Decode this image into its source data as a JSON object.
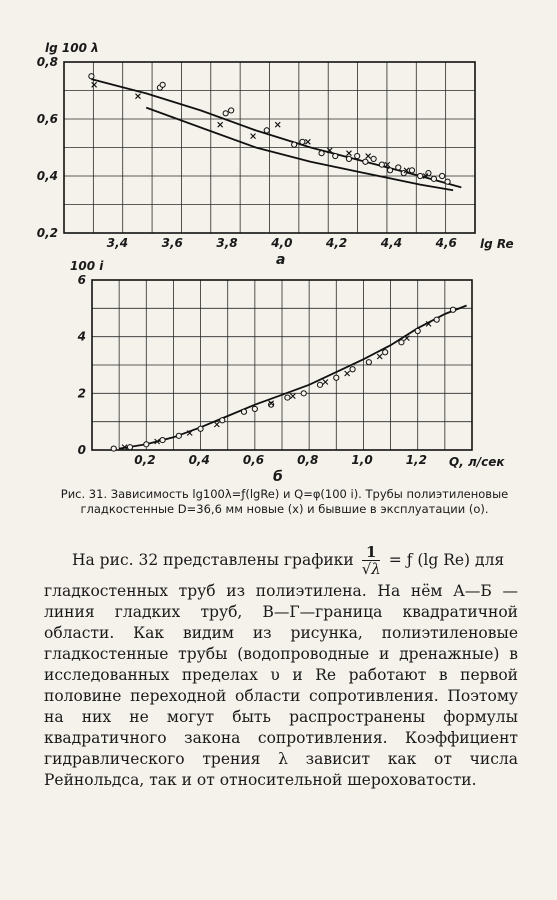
{
  "chart_data": [
    {
      "type": "scatter",
      "panel_label": "а",
      "ylabel": "lg 100 λ",
      "xlabel": "lg Re",
      "xlim": [
        3.2,
        4.7
      ],
      "ylim": [
        0.2,
        0.8
      ],
      "xticks": [
        "3,4",
        "3,6",
        "3,8",
        "4,0",
        "4,2",
        "4,4",
        "4,6"
      ],
      "yticks": [
        "0,2",
        "0,4",
        "0,6",
        "0,8"
      ],
      "grid": true,
      "series": [
        {
          "marker": "line",
          "x": [
            3.3,
            3.5,
            3.7,
            3.9,
            4.1,
            4.3,
            4.5,
            4.65
          ],
          "y": [
            0.74,
            0.69,
            0.63,
            0.56,
            0.5,
            0.45,
            0.4,
            0.36
          ]
        },
        {
          "marker": "line",
          "x": [
            3.5,
            3.7,
            3.9,
            4.1,
            4.3,
            4.5,
            4.62
          ],
          "y": [
            0.64,
            0.57,
            0.5,
            0.45,
            0.41,
            0.37,
            0.35
          ]
        },
        {
          "marker": "o",
          "x": [
            3.3,
            3.55,
            3.56,
            3.79,
            3.81,
            3.94,
            4.04,
            4.07,
            4.14,
            4.19,
            4.24,
            4.27,
            4.3,
            4.33,
            4.36,
            4.39,
            4.42,
            4.44,
            4.47,
            4.5,
            4.53,
            4.55,
            4.58,
            4.6
          ],
          "y": [
            0.75,
            0.71,
            0.72,
            0.62,
            0.63,
            0.56,
            0.51,
            0.52,
            0.48,
            0.47,
            0.46,
            0.47,
            0.45,
            0.46,
            0.44,
            0.42,
            0.43,
            0.41,
            0.42,
            0.4,
            0.41,
            0.39,
            0.4,
            0.38
          ]
        },
        {
          "marker": "x",
          "x": [
            3.31,
            3.47,
            3.77,
            3.89,
            3.98,
            4.09,
            4.17,
            4.24,
            4.31,
            4.38,
            4.45,
            4.52
          ],
          "y": [
            0.72,
            0.68,
            0.58,
            0.54,
            0.58,
            0.52,
            0.49,
            0.48,
            0.47,
            0.44,
            0.42,
            0.4
          ]
        }
      ]
    },
    {
      "type": "scatter",
      "panel_label": "б",
      "ylabel": "100 i",
      "xlabel": "Q, л/сек",
      "xlim": [
        0,
        1.4
      ],
      "ylim": [
        0,
        6
      ],
      "xticks": [
        "0,2",
        "0,4",
        "0,6",
        "0,8",
        "1,0",
        "1,2"
      ],
      "yticks": [
        "0",
        "2",
        "4",
        "6"
      ],
      "grid": true,
      "series": [
        {
          "marker": "line",
          "x": [
            0.1,
            0.2,
            0.3,
            0.4,
            0.5,
            0.6,
            0.7,
            0.8,
            0.9,
            1.0,
            1.1,
            1.2,
            1.3,
            1.38
          ],
          "y": [
            0.05,
            0.2,
            0.45,
            0.8,
            1.2,
            1.6,
            1.95,
            2.3,
            2.75,
            3.2,
            3.7,
            4.3,
            4.8,
            5.1
          ]
        },
        {
          "marker": "o",
          "x": [
            0.08,
            0.14,
            0.2,
            0.26,
            0.32,
            0.4,
            0.48,
            0.56,
            0.6,
            0.66,
            0.72,
            0.78,
            0.84,
            0.9,
            0.96,
            1.02,
            1.08,
            1.14,
            1.2,
            1.27,
            1.33
          ],
          "y": [
            0.05,
            0.1,
            0.2,
            0.35,
            0.5,
            0.75,
            1.05,
            1.35,
            1.45,
            1.6,
            1.85,
            2.0,
            2.3,
            2.55,
            2.85,
            3.1,
            3.45,
            3.8,
            4.2,
            4.6,
            4.95
          ]
        },
        {
          "marker": "x",
          "x": [
            0.12,
            0.24,
            0.36,
            0.46,
            0.66,
            0.74,
            0.86,
            0.94,
            1.06,
            1.16,
            1.24
          ],
          "y": [
            0.1,
            0.3,
            0.6,
            0.9,
            1.65,
            1.9,
            2.4,
            2.7,
            3.3,
            3.95,
            4.45
          ]
        }
      ]
    }
  ],
  "caption": {
    "lead": "Рис. 31.",
    "rest": "Зависимость lg100λ=ƒ(lgRe) и Q=φ(100 i). Трубы полиэтиленовые гладкостенные D=36,6 мм новые (x) и бывшие в эксплуатации (o)."
  },
  "body": {
    "intro": "На рис. 32 представлены графики",
    "frac_num": "1",
    "frac_den": "√λ",
    "formula_tail": "= ƒ (lg Re) для",
    "paragraph": "гладкостенных труб из полиэтилена. На нём А—Б — линия гладких труб, В—Г—граница квадратичной области. Как видим из рисунка, полиэтиленовые гладкостенные трубы (водопроводные и дренажные) в исследованных пределах υ и Re работают в первой половине переходной области сопротивления. Поэтому на них не могут быть распространены формулы квадратичного закона сопротивления. Коэффициент гидравлического трения λ зависит как от числа Рейнольдса, так и от относительной шероховатости."
  }
}
